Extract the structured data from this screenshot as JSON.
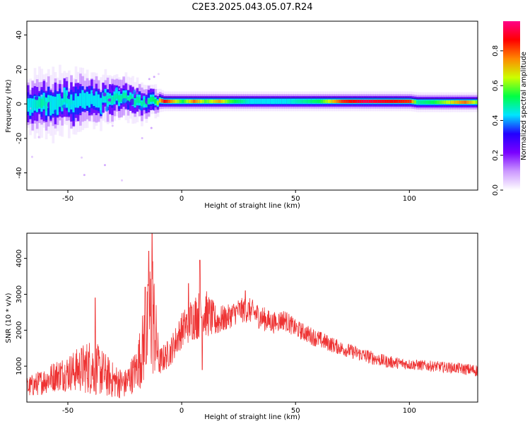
{
  "title": "C2E3.2025.043.05.07.R24",
  "colors": {
    "snr_line": "#ee3333",
    "colorbar": [
      "#ffffff",
      "#cc99ff",
      "#7a00ff",
      "#2200ff",
      "#00e5ff",
      "#00ff44",
      "#ccff00",
      "#ff8800",
      "#ff0000",
      "#ff0088"
    ]
  },
  "chart_data": [
    {
      "type": "heatmap",
      "xlabel": "Height of straight line (km)",
      "ylabel": "Frequency (Hz)",
      "xlim": [
        -68,
        130
      ],
      "ylim": [
        -50,
        48
      ],
      "xticks": [
        -50,
        0,
        50,
        100
      ],
      "yticks": [
        -40,
        -20,
        0,
        20,
        40
      ],
      "colorbar_label": "Normalized spectral amplitude",
      "colorbar_ticks": [
        0.0,
        0.2,
        0.4,
        0.6,
        0.8
      ],
      "colorbar_range": [
        0,
        0.97
      ],
      "ridge": [
        {
          "x": -67,
          "f": -0.5,
          "a": 0.45,
          "spread": 5.5
        },
        {
          "x": -62,
          "f": 1.5,
          "a": 0.5,
          "spread": 6
        },
        {
          "x": -57,
          "f": -1,
          "a": 0.45,
          "spread": 6.5
        },
        {
          "x": -52,
          "f": 2,
          "a": 0.48,
          "spread": 6
        },
        {
          "x": -47,
          "f": 0,
          "a": 0.45,
          "spread": 6
        },
        {
          "x": -42,
          "f": 3,
          "a": 0.45,
          "spread": 5.5
        },
        {
          "x": -37,
          "f": 1,
          "a": 0.45,
          "spread": 5
        },
        {
          "x": -33,
          "f": 4,
          "a": 0.48,
          "spread": 5
        },
        {
          "x": -28,
          "f": 3.5,
          "a": 0.5,
          "spread": 4.5
        },
        {
          "x": -22,
          "f": 2,
          "a": 0.5,
          "spread": 4
        },
        {
          "x": -16,
          "f": 1.5,
          "a": 0.5,
          "spread": 3.5
        },
        {
          "x": -12,
          "f": 2.5,
          "a": 0.55,
          "spread": 3
        },
        {
          "x": -8,
          "f": 1.5,
          "a": 0.9,
          "spread": 2.2
        },
        {
          "x": 0,
          "f": 1.5,
          "a": 0.55,
          "spread": 2.2
        },
        {
          "x": 5,
          "f": 1.5,
          "a": 0.8,
          "spread": 2.2
        },
        {
          "x": 10,
          "f": 1.5,
          "a": 0.6,
          "spread": 2.2
        },
        {
          "x": 16,
          "f": 1.5,
          "a": 0.75,
          "spread": 2.2
        },
        {
          "x": 20,
          "f": 1.5,
          "a": 0.6,
          "spread": 2.2
        },
        {
          "x": 30,
          "f": 1.5,
          "a": 0.45,
          "spread": 2.2
        },
        {
          "x": 45,
          "f": 1.5,
          "a": 0.45,
          "spread": 2.2
        },
        {
          "x": 60,
          "f": 1.5,
          "a": 0.55,
          "spread": 2.2
        },
        {
          "x": 70,
          "f": 1.5,
          "a": 0.85,
          "spread": 2.2
        },
        {
          "x": 80,
          "f": 1.5,
          "a": 0.95,
          "spread": 2.2
        },
        {
          "x": 90,
          "f": 1.5,
          "a": 0.9,
          "spread": 2.2
        },
        {
          "x": 100,
          "f": 1.5,
          "a": 0.85,
          "spread": 2.2
        },
        {
          "x": 103,
          "f": 1,
          "a": 0.5,
          "spread": 2.2
        },
        {
          "x": 110,
          "f": 1,
          "a": 0.55,
          "spread": 2.2
        },
        {
          "x": 124,
          "f": 1,
          "a": 0.8,
          "spread": 2.2
        },
        {
          "x": 130,
          "f": 1,
          "a": 0.6,
          "spread": 2.2
        }
      ]
    },
    {
      "type": "line",
      "xlabel": "Height of straight line (km)",
      "ylabel": "SNR (10 * v/v)",
      "xlim": [
        -68,
        130
      ],
      "ylim": [
        0,
        4700
      ],
      "xticks": [
        -50,
        0,
        50,
        100
      ],
      "yticks": [
        1000,
        2000,
        3000,
        4000
      ],
      "envelope": [
        {
          "x": -68,
          "lo": 100,
          "hi": 700
        },
        {
          "x": -62,
          "lo": 200,
          "hi": 900
        },
        {
          "x": -55,
          "lo": 300,
          "hi": 1200
        },
        {
          "x": -48,
          "lo": 300,
          "hi": 1400
        },
        {
          "x": -40,
          "lo": 200,
          "hi": 1800
        },
        {
          "x": -35,
          "lo": 150,
          "hi": 1500
        },
        {
          "x": -30,
          "lo": 100,
          "hi": 1100
        },
        {
          "x": -25,
          "lo": 100,
          "hi": 900
        },
        {
          "x": -20,
          "lo": 300,
          "hi": 1500
        },
        {
          "x": -15,
          "lo": 500,
          "hi": 3300
        },
        {
          "x": -13,
          "lo": 600,
          "hi": 4700
        },
        {
          "x": -10,
          "lo": 700,
          "hi": 1500
        },
        {
          "x": -5,
          "lo": 1000,
          "hi": 1800
        },
        {
          "x": 0,
          "lo": 1500,
          "hi": 2500
        },
        {
          "x": 5,
          "lo": 1700,
          "hi": 3000
        },
        {
          "x": 10,
          "lo": 1800,
          "hi": 3200
        },
        {
          "x": 15,
          "lo": 1800,
          "hi": 2700
        },
        {
          "x": 20,
          "lo": 2000,
          "hi": 2700
        },
        {
          "x": 25,
          "lo": 2200,
          "hi": 2900
        },
        {
          "x": 30,
          "lo": 2200,
          "hi": 2900
        },
        {
          "x": 35,
          "lo": 2000,
          "hi": 2700
        },
        {
          "x": 40,
          "lo": 1900,
          "hi": 2500
        },
        {
          "x": 45,
          "lo": 2000,
          "hi": 2600
        },
        {
          "x": 50,
          "lo": 1800,
          "hi": 2300
        },
        {
          "x": 60,
          "lo": 1500,
          "hi": 2000
        },
        {
          "x": 70,
          "lo": 1300,
          "hi": 1700
        },
        {
          "x": 80,
          "lo": 1100,
          "hi": 1500
        },
        {
          "x": 90,
          "lo": 950,
          "hi": 1300
        },
        {
          "x": 100,
          "lo": 900,
          "hi": 1200
        },
        {
          "x": 110,
          "lo": 850,
          "hi": 1150
        },
        {
          "x": 120,
          "lo": 800,
          "hi": 1100
        },
        {
          "x": 130,
          "lo": 700,
          "hi": 1050
        }
      ],
      "spikes": [
        {
          "x": -13,
          "y": 4700
        },
        {
          "x": -14.5,
          "y": 4200
        },
        {
          "x": -16,
          "y": 3200
        },
        {
          "x": -38,
          "y": 2900
        },
        {
          "x": 8,
          "y": 3950
        },
        {
          "x": 3,
          "y": 3300
        },
        {
          "x": 9,
          "y": 900
        },
        {
          "x": 28,
          "y": 3100
        },
        {
          "x": 42,
          "y": 2200
        }
      ]
    }
  ]
}
